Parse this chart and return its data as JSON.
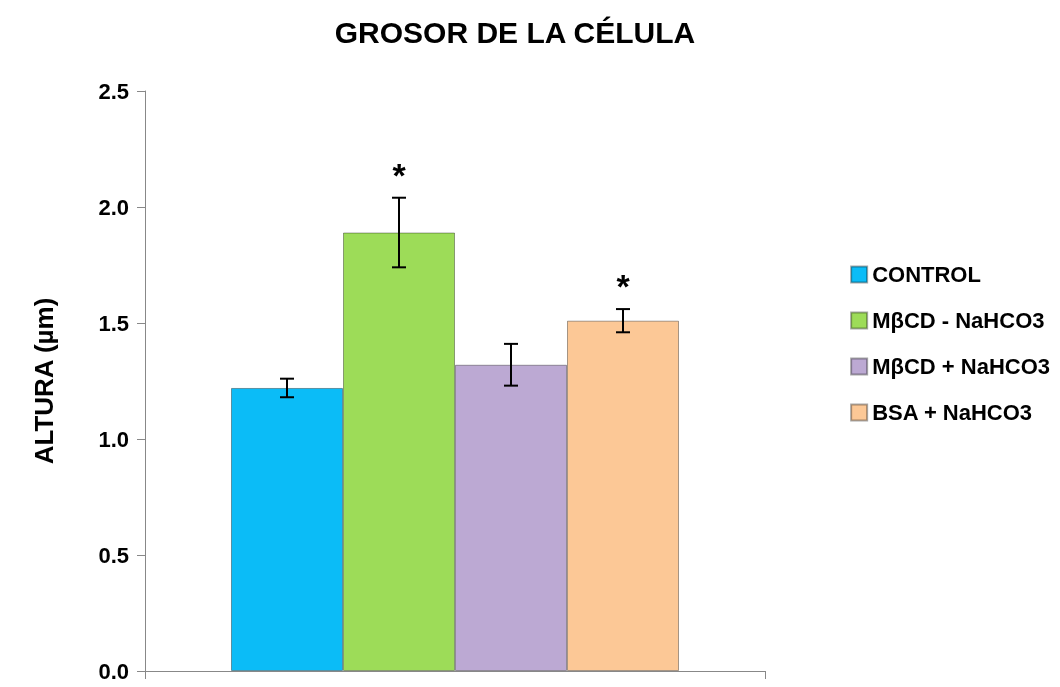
{
  "chart_data": {
    "type": "bar",
    "title": "GROSOR DE LA CÉLULA",
    "ylabel": "ALTURA (µm)",
    "categories": [
      null
    ],
    "series": [
      {
        "name": "CONTROL",
        "color": "#0bbcf7",
        "values": [
          1.22
        ],
        "errors": [
          0.04
        ]
      },
      {
        "name": "MβCD - NaHCO3",
        "color": "#9ddc58",
        "values": [
          1.89
        ],
        "errors": [
          0.15
        ],
        "value_labels": [
          "*"
        ]
      },
      {
        "name": "MβCD + NaHCO3",
        "color": "#bca9d3",
        "values": [
          1.32
        ],
        "errors": [
          0.09
        ]
      },
      {
        "name": "BSA + NaHCO3",
        "color": "#fcc896",
        "values": [
          1.51
        ],
        "errors": [
          0.05
        ],
        "value_labels": [
          "*"
        ]
      }
    ],
    "ylim": [
      0,
      2.5
    ],
    "yticks": [
      {
        "value": 0,
        "label": "0.0"
      },
      0.5,
      {
        "value": 1,
        "label": "1.0"
      },
      1.5,
      {
        "value": 2,
        "label": "2.0"
      },
      2.5
    ],
    "grid": false,
    "legend": "right"
  }
}
